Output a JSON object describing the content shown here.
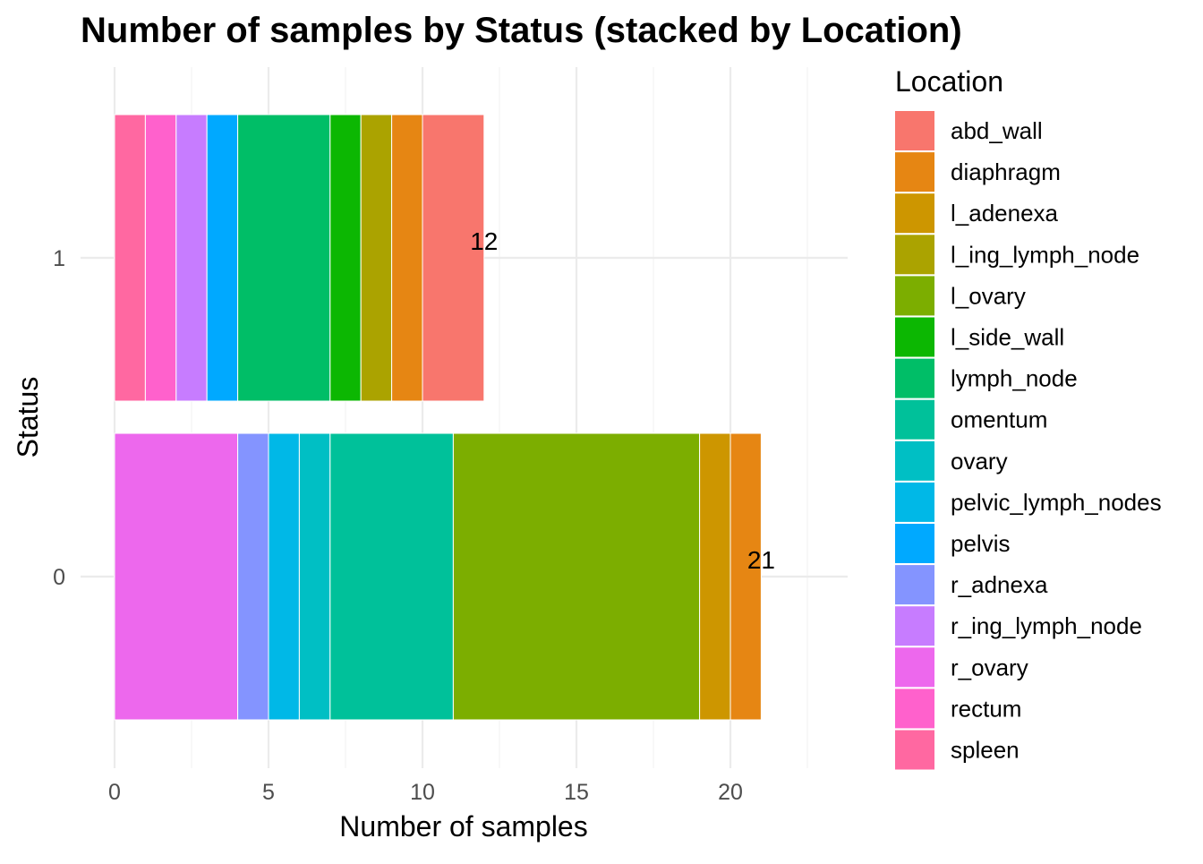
{
  "chart_data": {
    "type": "bar",
    "orientation": "horizontal",
    "stacked": true,
    "title": "Number of samples by Status (stacked by Location)",
    "xlabel": "Number of samples",
    "ylabel": "Status",
    "xlim": [
      0,
      24
    ],
    "x_ticks": [
      "0",
      "5",
      "10",
      "15",
      "20"
    ],
    "x_tick_values": [
      0,
      5,
      10,
      15,
      20
    ],
    "categories": [
      "1",
      "0"
    ],
    "totals": [
      "12",
      "21"
    ],
    "legend": {
      "title": "Location",
      "position": "right"
    },
    "grid": true,
    "series": [
      {
        "name": "abd_wall",
        "color": "#F8766D",
        "values": [
          2,
          0
        ]
      },
      {
        "name": "diaphragm",
        "color": "#E68613",
        "values": [
          1,
          1
        ]
      },
      {
        "name": "l_adenexa",
        "color": "#CD9600",
        "values": [
          0,
          1
        ]
      },
      {
        "name": "l_ing_lymph_node",
        "color": "#ABA300",
        "values": [
          1,
          0
        ]
      },
      {
        "name": "l_ovary",
        "color": "#7CAE00",
        "values": [
          0,
          8
        ]
      },
      {
        "name": "l_side_wall",
        "color": "#0CB702",
        "values": [
          1,
          0
        ]
      },
      {
        "name": "lymph_node",
        "color": "#00BE67",
        "values": [
          3,
          0
        ]
      },
      {
        "name": "omentum",
        "color": "#00C19A",
        "values": [
          0,
          4
        ]
      },
      {
        "name": "ovary",
        "color": "#00BFC4",
        "values": [
          0,
          1
        ]
      },
      {
        "name": "pelvic_lymph_nodes",
        "color": "#00B8E7",
        "values": [
          0,
          1
        ]
      },
      {
        "name": "pelvis",
        "color": "#00A9FF",
        "values": [
          1,
          0
        ]
      },
      {
        "name": "r_adnexa",
        "color": "#8494FF",
        "values": [
          0,
          1
        ]
      },
      {
        "name": "r_ing_lymph_node",
        "color": "#C77CFF",
        "values": [
          1,
          0
        ]
      },
      {
        "name": "r_ovary",
        "color": "#ED68ED",
        "values": [
          0,
          4
        ]
      },
      {
        "name": "rectum",
        "color": "#FF61CC",
        "values": [
          1,
          0
        ]
      },
      {
        "name": "spleen",
        "color": "#FF68A1",
        "values": [
          1,
          0
        ]
      }
    ]
  }
}
